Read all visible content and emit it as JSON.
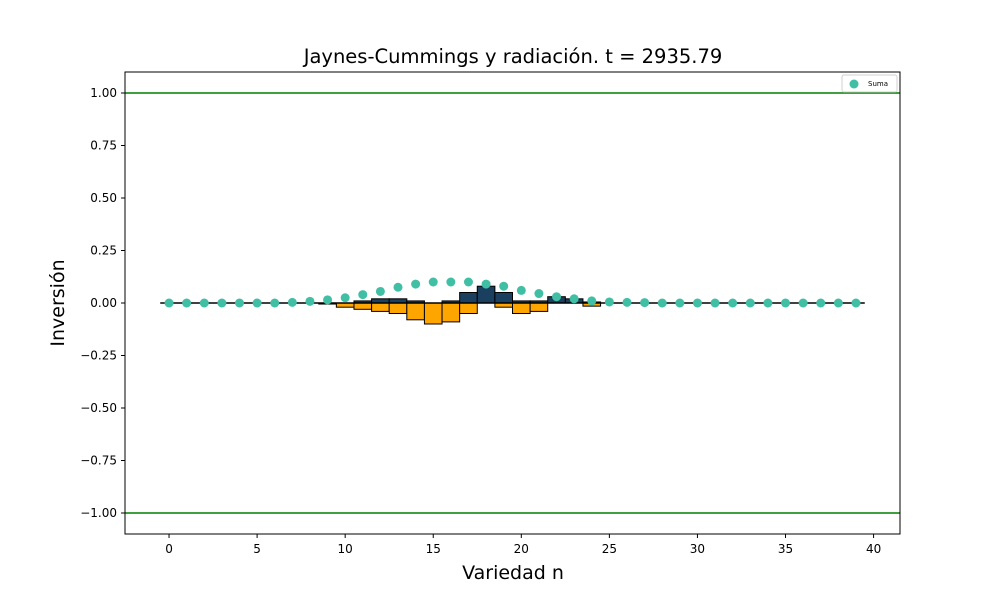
{
  "chart_data": {
    "type": "bar",
    "title": "Jaynes-Cummings y radiación. t = 2935.79",
    "xlabel": "Variedad n",
    "ylabel": "Inversión",
    "xlim": [
      -2.5,
      41.5
    ],
    "ylim": [
      -1.1,
      1.1
    ],
    "xticks": [
      0,
      5,
      10,
      15,
      20,
      25,
      30,
      35,
      40
    ],
    "yticks": [
      1.0,
      0.75,
      0.5,
      0.25,
      0.0,
      -0.25,
      -0.5,
      -0.75,
      -1.0
    ],
    "xtick_labels": [
      "0",
      "5",
      "10",
      "15",
      "20",
      "25",
      "30",
      "35",
      "40"
    ],
    "ytick_labels": [
      "1.00",
      "0.75",
      "0.50",
      "0.25",
      "0.00",
      "−0.25",
      "−0.50",
      "−0.75",
      "−1.00"
    ],
    "hlines": [
      1.0,
      -1.0
    ],
    "grid": false,
    "legend": {
      "entries": [
        "Suma"
      ],
      "placement": "top-right"
    },
    "colors": {
      "positive_bar": "#1a3f5f",
      "negative_bar": "#ffa500",
      "scatter": "#40bfa5",
      "hline": "#008000",
      "baseline": "#000000"
    },
    "bars_x": [
      0,
      1,
      2,
      3,
      4,
      5,
      6,
      7,
      8,
      9,
      10,
      11,
      12,
      13,
      14,
      15,
      16,
      17,
      18,
      19,
      20,
      21,
      22,
      23,
      24,
      25,
      26,
      27,
      28,
      29,
      30,
      31,
      32,
      33,
      34,
      35,
      36,
      37,
      38,
      39
    ],
    "bars_top": [
      0,
      0,
      0,
      0,
      0,
      0,
      0,
      0,
      0,
      0,
      0,
      0.01,
      0.02,
      0.02,
      0.01,
      0,
      0.01,
      0.05,
      0.08,
      0.05,
      0.01,
      0.01,
      0.03,
      0.02,
      0.005,
      0,
      0,
      0,
      0,
      0,
      0,
      0,
      0,
      0,
      0,
      0,
      0,
      0,
      0,
      0
    ],
    "bars_bottom": [
      0,
      0,
      0,
      0,
      0,
      0,
      0,
      0,
      0,
      -0.005,
      -0.02,
      -0.03,
      -0.04,
      -0.05,
      -0.08,
      -0.1,
      -0.09,
      -0.05,
      0,
      -0.02,
      -0.05,
      -0.04,
      0,
      0,
      -0.015,
      0,
      0,
      0,
      0,
      0,
      0,
      0,
      0,
      0,
      0,
      0,
      0,
      0,
      0,
      0
    ],
    "suma": {
      "name": "Suma",
      "x": [
        0,
        1,
        2,
        3,
        4,
        5,
        6,
        7,
        8,
        9,
        10,
        11,
        12,
        13,
        14,
        15,
        16,
        17,
        18,
        19,
        20,
        21,
        22,
        23,
        24,
        25,
        26,
        27,
        28,
        29,
        30,
        31,
        32,
        33,
        34,
        35,
        36,
        37,
        38,
        39
      ],
      "y": [
        0,
        0,
        0,
        0,
        0,
        0,
        0,
        0.003,
        0.008,
        0.015,
        0.025,
        0.04,
        0.055,
        0.075,
        0.09,
        0.1,
        0.1,
        0.1,
        0.09,
        0.08,
        0.06,
        0.045,
        0.03,
        0.02,
        0.01,
        0.005,
        0.003,
        0.002,
        0,
        0,
        0,
        0,
        0,
        0,
        0,
        0,
        0,
        0,
        0,
        0
      ]
    }
  }
}
